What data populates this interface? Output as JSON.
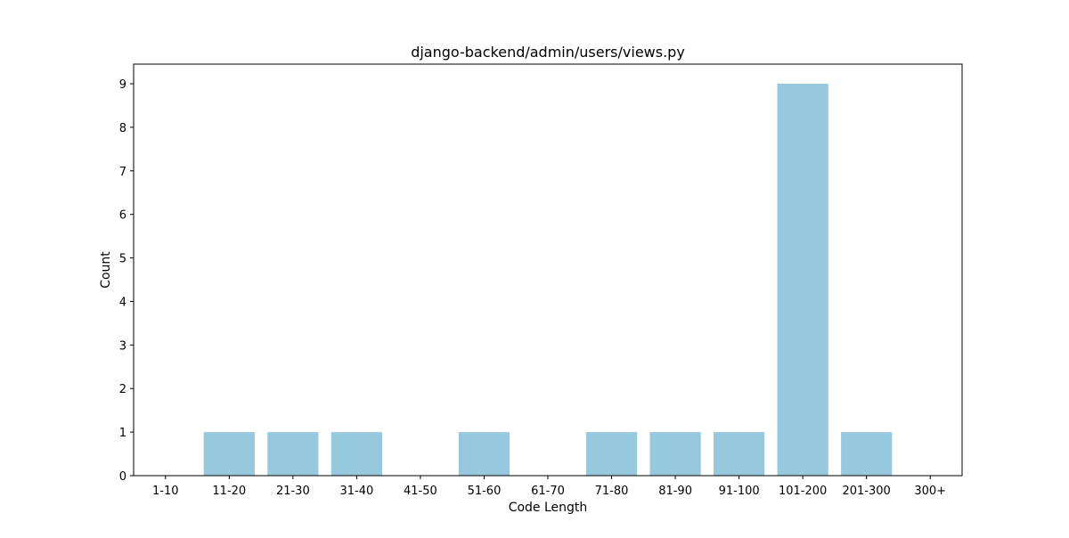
{
  "chart_data": {
    "type": "bar",
    "title": "django-backend/admin/users/views.py",
    "xlabel": "Code Length",
    "ylabel": "Count",
    "categories": [
      "1-10",
      "11-20",
      "21-30",
      "31-40",
      "41-50",
      "51-60",
      "61-70",
      "71-80",
      "81-90",
      "91-100",
      "101-200",
      "201-300",
      "300+"
    ],
    "values": [
      0,
      1,
      1,
      1,
      0,
      1,
      0,
      1,
      1,
      1,
      9,
      1,
      0
    ],
    "ylim": [
      0,
      9.45
    ],
    "yticks": [
      "0",
      "1",
      "2",
      "3",
      "4",
      "5",
      "6",
      "7",
      "8",
      "9"
    ],
    "bar_color": "#96c9dd",
    "grid": false,
    "legend": "none"
  }
}
